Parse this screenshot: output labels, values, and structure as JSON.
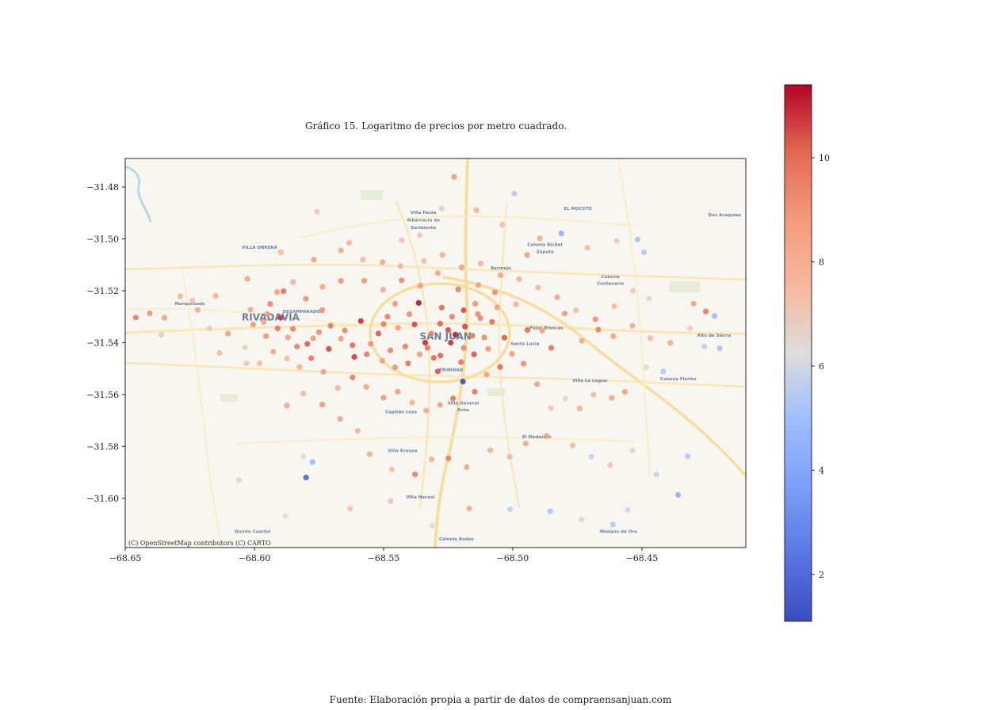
{
  "title": "Gráfico 15. Logaritmo de precios por metro cuadrado.",
  "source": "Fuente: Elaboración propia a partir de datos de compraensanjuan.com",
  "attribution": "(C) OpenStreetMap contributors (C) CARTO",
  "map_labels": [
    {
      "text": "VILLA OBRERA",
      "lon": -68.598,
      "lat": -31.5039
    },
    {
      "text": "Villa Paula",
      "lon": -68.5346,
      "lat": -31.4904
    },
    {
      "text": "Albarracín de",
      "lon": -68.5346,
      "lat": -31.4933
    },
    {
      "text": "Sarmiento",
      "lon": -68.5346,
      "lat": -31.4962
    },
    {
      "text": "EL MOCOTE",
      "lon": -68.4748,
      "lat": -31.4889
    },
    {
      "text": "Dos Acequias",
      "lon": -68.418,
      "lat": -31.4913
    },
    {
      "text": "Colonia Richet",
      "lon": -68.4875,
      "lat": -31.5027
    },
    {
      "text": "Zapata",
      "lon": -68.4875,
      "lat": -31.5055
    },
    {
      "text": "Bermejo",
      "lon": -68.5046,
      "lat": -31.5117
    },
    {
      "text": "Colonia",
      "lon": -68.4622,
      "lat": -31.5152
    },
    {
      "text": "Centenario",
      "lon": -68.4622,
      "lat": -31.5178
    },
    {
      "text": "Marquesado",
      "lon": -68.625,
      "lat": -31.5255
    },
    {
      "text": "DESAMPARADOS",
      "lon": -68.5812,
      "lat": -31.5286
    },
    {
      "text": "RIVADAVIA",
      "lon": -68.5937,
      "lat": -31.5315
    },
    {
      "text": "Pajas Blancas",
      "lon": -68.487,
      "lat": -31.5348
    },
    {
      "text": "Alto de Sierra",
      "lon": -68.4221,
      "lat": -31.5378
    },
    {
      "text": "SAN JUAN",
      "lon": -68.526,
      "lat": -31.5388
    },
    {
      "text": "Santa Lucía",
      "lon": -68.4953,
      "lat": -31.541
    },
    {
      "text": "TRINIDAD",
      "lon": -68.5239,
      "lat": -31.551
    },
    {
      "text": "Villa La Legua",
      "lon": -68.4702,
      "lat": -31.5551
    },
    {
      "text": "Colonia Florito",
      "lon": -68.436,
      "lat": -31.5545
    },
    {
      "text": "Villa General",
      "lon": -68.5192,
      "lat": -31.5639
    },
    {
      "text": "Acha",
      "lon": -68.5192,
      "lat": -31.5665
    },
    {
      "text": "Capitán Lazo",
      "lon": -68.5432,
      "lat": -31.5672
    },
    {
      "text": "El Medanito",
      "lon": -68.4907,
      "lat": -31.5768
    },
    {
      "text": "Villa Krause",
      "lon": -68.5427,
      "lat": -31.5822
    },
    {
      "text": "Villa Nacusi",
      "lon": -68.5358,
      "lat": -31.6001
    },
    {
      "text": "Quinto Cuartel",
      "lon": -68.6007,
      "lat": -31.6134
    },
    {
      "text": "Médano de Oro",
      "lon": -68.4591,
      "lat": -31.6134
    },
    {
      "text": "Colonia Rodas",
      "lon": -68.5218,
      "lat": -31.6163
    }
  ],
  "chart_data": {
    "type": "scatter",
    "title": "Gráfico 15. Logaritmo de precios por metro cuadrado.",
    "xlabel": "",
    "ylabel": "",
    "xlim": [
      -68.65,
      -68.4098
    ],
    "ylim": [
      -31.619,
      -31.469
    ],
    "xticks": [
      "−68.65",
      "−68.60",
      "−68.55",
      "−68.50",
      "−68.45"
    ],
    "xtick_values": [
      -68.65,
      -68.6,
      -68.55,
      -68.5,
      -68.45
    ],
    "yticks": [
      "−31.48",
      "−31.50",
      "−31.52",
      "−31.54",
      "−31.56",
      "−31.58",
      "−31.60"
    ],
    "ytick_values": [
      -31.48,
      -31.5,
      -31.52,
      -31.54,
      -31.56,
      -31.58,
      -31.6
    ],
    "grid": false,
    "basemap": "CARTO Voyager",
    "colormap": "coolwarm",
    "colorbar": {
      "vmin": 1.1,
      "vmax": 11.4,
      "ticks": [
        2,
        4,
        6,
        8,
        10
      ],
      "tick_labels": [
        "2",
        "4",
        "6",
        "8",
        "10"
      ]
    },
    "points": [
      [
        -68.5222,
        -31.5369,
        11.0
      ],
      [
        -68.5185,
        -31.5338,
        10.6
      ],
      [
        -68.525,
        -31.5351,
        10.5
      ],
      [
        -68.5281,
        -31.5327,
        10.2
      ],
      [
        -68.5156,
        -31.5373,
        9.8
      ],
      [
        -68.5339,
        -31.54,
        10.9
      ],
      [
        -68.5416,
        -31.5415,
        9.6
      ],
      [
        -68.5125,
        -31.5306,
        9.4
      ],
      [
        -68.5306,
        -31.5459,
        10.1
      ],
      [
        -68.5095,
        -31.5424,
        9.0
      ],
      [
        -68.54,
        -31.529,
        9.3
      ],
      [
        -68.5444,
        -31.5343,
        8.8
      ],
      [
        -68.52,
        -31.5475,
        9.9
      ],
      [
        -68.5145,
        -31.525,
        9.1
      ],
      [
        -68.5364,
        -31.5247,
        11.3
      ],
      [
        -68.5474,
        -31.543,
        9.5
      ],
      [
        -68.5032,
        -31.5381,
        10.3
      ],
      [
        -68.506,
        -31.5264,
        8.7
      ],
      [
        -68.55,
        -31.5328,
        9.7
      ],
      [
        -68.529,
        -31.5511,
        10.4
      ],
      [
        -68.5588,
        -31.5317,
        10.9
      ],
      [
        -68.555,
        -31.5405,
        9.2
      ],
      [
        -68.5613,
        -31.5455,
        10.7
      ],
      [
        -68.565,
        -31.5353,
        9.4
      ],
      [
        -68.5712,
        -31.5424,
        10.6
      ],
      [
        -68.5737,
        -31.5274,
        9.0
      ],
      [
        -68.5773,
        -31.5383,
        8.9
      ],
      [
        -68.5851,
        -31.5347,
        9.6
      ],
      [
        -68.5899,
        -31.5304,
        10.8
      ],
      [
        -68.5939,
        -31.5251,
        9.3
      ],
      [
        -68.5964,
        -31.5321,
        8.6
      ],
      [
        -68.6015,
        -31.5273,
        8.4
      ],
      [
        -68.5887,
        -31.5202,
        9.9
      ],
      [
        -68.5801,
        -31.5231,
        9.1
      ],
      [
        -68.5736,
        -31.5185,
        8.5
      ],
      [
        -68.5665,
        -31.5162,
        9.0
      ],
      [
        -68.5575,
        -31.5161,
        8.9
      ],
      [
        -68.5502,
        -31.5196,
        8.2
      ],
      [
        -68.543,
        -31.516,
        9.3
      ],
      [
        -68.5358,
        -31.518,
        8.8
      ],
      [
        -68.529,
        -31.5132,
        8.4
      ],
      [
        -68.5211,
        -31.5195,
        9.6
      ],
      [
        -68.5133,
        -31.5178,
        8.6
      ],
      [
        -68.5069,
        -31.5206,
        9.2
      ],
      [
        -68.4988,
        -31.5252,
        8.0
      ],
      [
        -68.4943,
        -31.5351,
        10.0
      ],
      [
        -68.4886,
        -31.5354,
        8.8
      ],
      [
        -68.4851,
        -31.542,
        9.9
      ],
      [
        -68.4799,
        -31.5288,
        9.0
      ],
      [
        -68.4733,
        -31.5393,
        8.3
      ],
      [
        -68.4669,
        -31.535,
        9.5
      ],
      [
        -68.4611,
        -31.5375,
        8.6
      ],
      [
        -68.4537,
        -31.5335,
        8.2
      ],
      [
        -68.4467,
        -31.5383,
        7.6
      ],
      [
        -68.439,
        -31.5401,
        8.1
      ],
      [
        -68.43,
        -31.525,
        8.5
      ],
      [
        -68.4253,
        -31.528,
        9.7
      ],
      [
        -68.4219,
        -31.5297,
        4.8
      ],
      [
        -68.4199,
        -31.5422,
        5.1
      ],
      [
        -68.4258,
        -31.5415,
        5.6
      ],
      [
        -68.4313,
        -31.5345,
        6.9
      ],
      [
        -68.4484,
        -31.5495,
        6.3
      ],
      [
        -68.4418,
        -31.5511,
        5.4
      ],
      [
        -68.4566,
        -31.559,
        8.7
      ],
      [
        -68.4617,
        -31.5613,
        8.4
      ],
      [
        -68.4687,
        -31.5601,
        7.6
      ],
      [
        -68.4741,
        -31.5654,
        8.0
      ],
      [
        -68.4796,
        -31.5616,
        6.5
      ],
      [
        -68.4852,
        -31.5652,
        7.0
      ],
      [
        -68.4906,
        -31.556,
        8.6
      ],
      [
        -68.4958,
        -31.5481,
        9.3
      ],
      [
        -68.5003,
        -31.5443,
        8.8
      ],
      [
        -68.5049,
        -31.5494,
        10.1
      ],
      [
        -68.5101,
        -31.5523,
        8.7
      ],
      [
        -68.5147,
        -31.5589,
        9.8
      ],
      [
        -68.5193,
        -31.555,
        1.2
      ],
      [
        -68.5231,
        -31.5615,
        9.9
      ],
      [
        -68.5281,
        -31.564,
        8.6
      ],
      [
        -68.5335,
        -31.5662,
        8.2
      ],
      [
        -68.5389,
        -31.5631,
        7.9
      ],
      [
        -68.5445,
        -31.5589,
        8.8
      ],
      [
        -68.55,
        -31.5612,
        9.0
      ],
      [
        -68.5567,
        -31.5571,
        8.5
      ],
      [
        -68.562,
        -31.5534,
        9.6
      ],
      [
        -68.5677,
        -31.5575,
        7.8
      ],
      [
        -68.5733,
        -31.5512,
        8.6
      ],
      [
        -68.578,
        -31.546,
        9.8
      ],
      [
        -68.5825,
        -31.5494,
        8.1
      ],
      [
        -68.5874,
        -31.5462,
        7.5
      ],
      [
        -68.5927,
        -31.5435,
        8.4
      ],
      [
        -68.5979,
        -31.548,
        7.4
      ],
      [
        -68.6036,
        -31.5418,
        6.8
      ],
      [
        -68.6102,
        -31.5365,
        8.6
      ],
      [
        -68.6174,
        -31.5345,
        7.0
      ],
      [
        -68.622,
        -31.5274,
        8.2
      ],
      [
        -68.6287,
        -31.5221,
        7.8
      ],
      [
        -68.6348,
        -31.5304,
        8.7
      ],
      [
        -68.6405,
        -31.5287,
        9.0
      ],
      [
        -68.6459,
        -31.5303,
        9.6
      ],
      [
        -68.5874,
        -31.5643,
        8.3
      ],
      [
        -68.5811,
        -31.5596,
        7.6
      ],
      [
        -68.5737,
        -31.5639,
        8.9
      ],
      [
        -68.5668,
        -31.5694,
        8.5
      ],
      [
        -68.56,
        -31.574,
        7.9
      ],
      [
        -68.5554,
        -31.583,
        8.1
      ],
      [
        -68.5468,
        -31.5889,
        7.4
      ],
      [
        -68.5378,
        -31.5908,
        9.5
      ],
      [
        -68.5314,
        -31.585,
        8.0
      ],
      [
        -68.5249,
        -31.5846,
        9.6
      ],
      [
        -68.5178,
        -31.588,
        8.4
      ],
      [
        -68.5087,
        -31.5815,
        7.9
      ],
      [
        -68.5012,
        -31.584,
        7.7
      ],
      [
        -68.495,
        -31.5789,
        8.3
      ],
      [
        -68.4869,
        -31.576,
        8.6
      ],
      [
        -68.4768,
        -31.5796,
        7.5
      ],
      [
        -68.4696,
        -31.584,
        5.8
      ],
      [
        -68.4623,
        -31.5872,
        7.1
      ],
      [
        -68.4536,
        -31.5816,
        6.6
      ],
      [
        -68.4444,
        -31.5908,
        5.9
      ],
      [
        -68.4323,
        -31.5838,
        5.4
      ],
      [
        -68.581,
        -31.584,
        6.2
      ],
      [
        -68.58,
        -31.592,
        1.9
      ],
      [
        -68.5775,
        -31.586,
        4.7
      ],
      [
        -68.606,
        -31.593,
        6.0
      ],
      [
        -68.588,
        -31.6069,
        6.3
      ],
      [
        -68.563,
        -31.604,
        7.3
      ],
      [
        -68.5473,
        -31.6011,
        7.2
      ],
      [
        -68.5312,
        -31.6106,
        6.4
      ],
      [
        -68.5169,
        -31.604,
        8.1
      ],
      [
        -68.5011,
        -31.6042,
        5.7
      ],
      [
        -68.4855,
        -31.605,
        5.2
      ],
      [
        -68.4734,
        -31.6081,
        6.5
      ],
      [
        -68.4612,
        -31.6101,
        5.4
      ],
      [
        -68.4555,
        -31.6044,
        5.9
      ],
      [
        -68.436,
        -31.5987,
        4.5
      ],
      [
        -68.543,
        -31.5005,
        7.2
      ],
      [
        -68.536,
        -31.4986,
        6.8
      ],
      [
        -68.5275,
        -31.4883,
        6.7
      ],
      [
        -68.5227,
        -31.4761,
        8.9
      ],
      [
        -68.514,
        -31.489,
        7.9
      ],
      [
        -68.504,
        -31.4945,
        7.3
      ],
      [
        -68.4895,
        -31.4998,
        8.1
      ],
      [
        -68.4812,
        -31.4979,
        4.4
      ],
      [
        -68.4711,
        -31.5034,
        7.6
      ],
      [
        -68.4598,
        -31.5008,
        6.9
      ],
      [
        -68.4517,
        -31.5002,
        5.1
      ],
      [
        -68.4492,
        -31.5051,
        5.4
      ],
      [
        -68.4994,
        -31.4825,
        5.5
      ],
      [
        -68.4944,
        -31.5062,
        8.6
      ],
      [
        -68.5633,
        -31.5015,
        7.8
      ],
      [
        -68.5757,
        -31.4895,
        7.1
      ],
      [
        -68.5898,
        -31.5051,
        7.6
      ],
      [
        -68.6027,
        -31.5154,
        8.5
      ],
      [
        -68.624,
        -31.5237,
        7.3
      ],
      [
        -68.615,
        -31.522,
        7.9
      ],
      [
        -68.636,
        -31.537,
        6.9
      ],
      [
        -68.6135,
        -31.544,
        7.4
      ],
      [
        -68.603,
        -31.548,
        7.0
      ],
      [
        -68.6005,
        -31.533,
        8.9
      ],
      [
        -68.5955,
        -31.5375,
        9.1
      ],
      [
        -68.5912,
        -31.5205,
        8.7
      ],
      [
        -68.585,
        -31.5166,
        8.0
      ],
      [
        -68.577,
        -31.508,
        8.6
      ],
      [
        -68.5665,
        -31.5045,
        8.3
      ],
      [
        -68.558,
        -31.508,
        7.6
      ],
      [
        -68.5504,
        -31.509,
        8.4
      ],
      [
        -68.5435,
        -31.5105,
        7.8
      ],
      [
        -68.5344,
        -31.5085,
        7.5
      ],
      [
        -68.5272,
        -31.5062,
        8.1
      ],
      [
        -68.5198,
        -31.511,
        8.6
      ],
      [
        -68.5124,
        -31.5095,
        7.9
      ],
      [
        -68.5047,
        -31.514,
        8.3
      ],
      [
        -68.4975,
        -31.5155,
        8.0
      ],
      [
        -68.4902,
        -31.5188,
        7.7
      ],
      [
        -68.4828,
        -31.5225,
        8.5
      ],
      [
        -68.4755,
        -31.5275,
        7.4
      ],
      [
        -68.468,
        -31.531,
        9.1
      ],
      [
        -68.4607,
        -31.526,
        7.6
      ],
      [
        -68.4535,
        -31.52,
        7.0
      ],
      [
        -68.4473,
        -31.523,
        6.6
      ],
      [
        -68.552,
        -31.5365,
        10.3
      ],
      [
        -68.5485,
        -31.53,
        9.7
      ],
      [
        -68.5455,
        -31.525,
        9.0
      ],
      [
        -68.538,
        -31.533,
        10.6
      ],
      [
        -68.533,
        -31.542,
        9.8
      ],
      [
        -68.528,
        -31.545,
        10.2
      ],
      [
        -68.524,
        -31.54,
        10.8
      ],
      [
        -68.519,
        -31.542,
        9.5
      ],
      [
        -68.515,
        -31.5445,
        10.4
      ],
      [
        -68.511,
        -31.538,
        9.3
      ],
      [
        -68.508,
        -31.532,
        10.0
      ],
      [
        -68.5135,
        -31.529,
        9.2
      ],
      [
        -68.519,
        -31.5275,
        10.5
      ],
      [
        -68.5235,
        -31.53,
        9.6
      ],
      [
        -68.5275,
        -31.5265,
        10.1
      ],
      [
        -68.5315,
        -31.5365,
        9.4
      ],
      [
        -68.536,
        -31.5445,
        8.9
      ],
      [
        -68.5405,
        -31.548,
        9.9
      ],
      [
        -68.5455,
        -31.5495,
        9.1
      ],
      [
        -68.5505,
        -31.547,
        8.7
      ],
      [
        -68.5565,
        -31.5445,
        9.6
      ],
      [
        -68.562,
        -31.541,
        10.0
      ],
      [
        -68.5665,
        -31.5385,
        8.8
      ],
      [
        -68.5705,
        -31.5335,
        9.7
      ],
      [
        -68.575,
        -31.536,
        9.2
      ],
      [
        -68.5795,
        -31.5405,
        10.3
      ],
      [
        -68.5835,
        -31.5415,
        9.5
      ],
      [
        -68.587,
        -31.538,
        8.6
      ],
      [
        -68.591,
        -31.5345,
        9.8
      ],
      [
        -68.595,
        -31.529,
        8.9
      ]
    ]
  }
}
